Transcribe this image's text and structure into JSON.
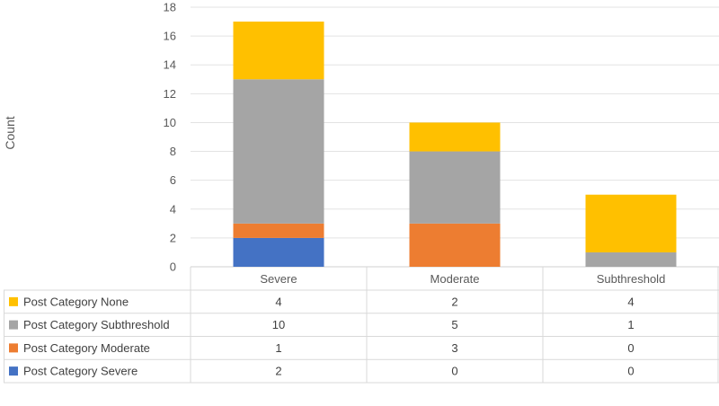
{
  "chart_data": {
    "type": "bar",
    "stacked": true,
    "categories": [
      "Severe",
      "Moderate",
      "Subthreshold"
    ],
    "ylabel": "Count",
    "xlabel": "",
    "ylim": [
      0,
      18
    ],
    "yticks": [
      0,
      2,
      4,
      6,
      8,
      10,
      12,
      14,
      16,
      18
    ],
    "grid": true,
    "legend": "data-table-below",
    "series": [
      {
        "name": "Post Category None",
        "color": "#FFC000",
        "values": [
          4,
          2,
          4
        ]
      },
      {
        "name": "Post Category Subthreshold",
        "color": "#A5A5A5",
        "values": [
          10,
          5,
          1
        ]
      },
      {
        "name": "Post Category Moderate",
        "color": "#ED7D31",
        "values": [
          1,
          3,
          0
        ]
      },
      {
        "name": "Post Category Severe",
        "color": "#4472C4",
        "values": [
          2,
          0,
          0
        ]
      }
    ]
  }
}
